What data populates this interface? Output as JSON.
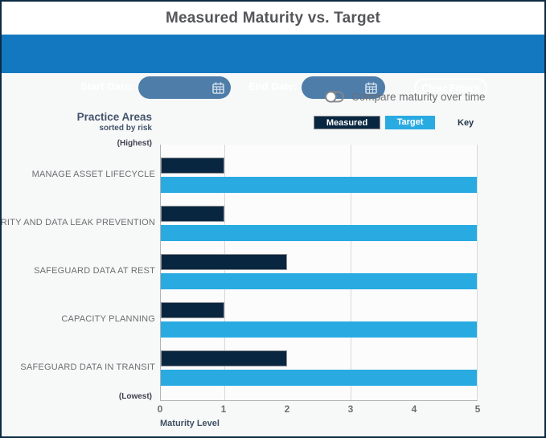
{
  "header": {
    "title": "Measured Maturity vs. Target"
  },
  "filter_bar": {
    "start_date_label": "Start Date:",
    "start_date_value": "",
    "end_date_label": "End Date:",
    "end_date_value": "",
    "clear_filters_label": "Clear Filters",
    "calendar_icon": "calendar-icon"
  },
  "controls": {
    "compare_toggle_label": "Compare maturity over time",
    "toggle_state": "off"
  },
  "legend": {
    "measured_label": "Measured",
    "target_label": "Target",
    "key_label": "Key"
  },
  "axis_headers": {
    "title": "Practice Areas",
    "subtitle": "sorted by risk",
    "highest_label": "(Highest)",
    "lowest_label": "(Lowest)"
  },
  "chart_data": {
    "type": "bar",
    "orientation": "horizontal",
    "title": "Measured Maturity vs. Target",
    "categories": [
      "MANAGE ASSET LIFECYCLE",
      "TEGRITY AND DATA LEAK PREVENTION",
      "SAFEGUARD DATA AT REST",
      "CAPACITY PLANNING",
      "SAFEGUARD DATA IN TRANSIT"
    ],
    "series": [
      {
        "name": "Measured",
        "color": "#082640",
        "values": [
          1,
          1,
          2,
          1,
          2
        ]
      },
      {
        "name": "Target",
        "color": "#29abe2",
        "values": [
          5,
          5,
          5,
          5,
          5
        ]
      }
    ],
    "xlabel": "Maturity Level",
    "x_ticks": [
      "0",
      "1",
      "2",
      "3",
      "4",
      "5"
    ],
    "xlim": [
      0,
      5
    ],
    "gridlines_at": [
      1,
      3
    ],
    "grid": true,
    "legend_position": "top-right",
    "sort_note": "sorted by risk, highest at top"
  },
  "colors": {
    "topbar_blue": "#1478c1",
    "date_field_blue": "#4f7da9",
    "bar_measured": "#082640",
    "bar_target": "#29abe2",
    "page_background": "#f7f8f8",
    "frame_border": "#0d2b43",
    "text_gray": "#6d6e71",
    "text_slate": "#44546a"
  }
}
